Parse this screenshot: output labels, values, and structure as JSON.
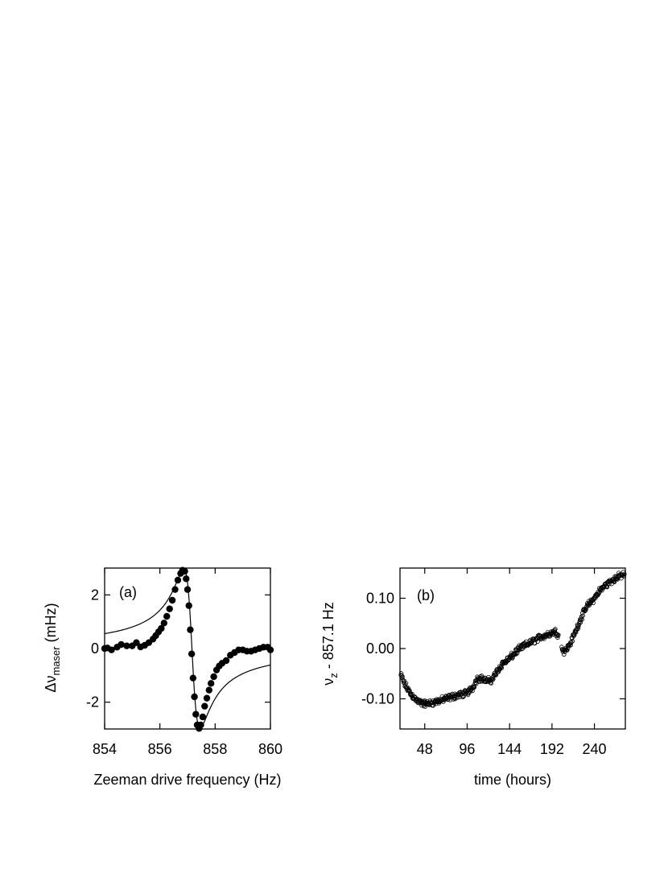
{
  "chart_data": [
    {
      "panel": "(a)",
      "type": "scatter",
      "xlabel": "Zeeman drive frequency (Hz)",
      "ylabel_main": "Δν",
      "ylabel_sub": "maser",
      "ylabel_unit": " (mHz)",
      "xlim": [
        854,
        860
      ],
      "ylim": [
        -3,
        3
      ],
      "xticks": [
        854,
        856,
        858,
        860
      ],
      "yticks": [
        -2,
        0,
        2
      ],
      "fit_curve": {
        "center": 857.16,
        "gamma": 0.3,
        "amplitude": 2.95
      },
      "points": [
        [
          853.9,
          0.0
        ],
        [
          854.1,
          0.02
        ],
        [
          854.25,
          -0.05
        ],
        [
          854.45,
          0.05
        ],
        [
          854.6,
          0.15
        ],
        [
          854.8,
          0.1
        ],
        [
          855.0,
          0.1
        ],
        [
          855.15,
          0.22
        ],
        [
          855.3,
          0.06
        ],
        [
          855.45,
          0.12
        ],
        [
          855.6,
          0.22
        ],
        [
          855.75,
          0.35
        ],
        [
          855.85,
          0.48
        ],
        [
          855.95,
          0.62
        ],
        [
          856.05,
          0.75
        ],
        [
          856.15,
          0.95
        ],
        [
          856.25,
          1.2
        ],
        [
          856.35,
          1.48
        ],
        [
          856.45,
          1.8
        ],
        [
          856.55,
          2.2
        ],
        [
          856.65,
          2.55
        ],
        [
          856.75,
          2.8
        ],
        [
          856.82,
          2.92
        ],
        [
          856.9,
          2.88
        ],
        [
          856.95,
          2.6
        ],
        [
          857.0,
          2.2
        ],
        [
          857.05,
          1.6
        ],
        [
          857.1,
          0.7
        ],
        [
          857.15,
          -0.2
        ],
        [
          857.2,
          -1.1
        ],
        [
          857.25,
          -1.8
        ],
        [
          857.3,
          -2.45
        ],
        [
          857.35,
          -2.85
        ],
        [
          857.42,
          -2.98
        ],
        [
          857.48,
          -2.85
        ],
        [
          857.55,
          -2.55
        ],
        [
          857.62,
          -2.15
        ],
        [
          857.7,
          -1.85
        ],
        [
          857.78,
          -1.55
        ],
        [
          857.85,
          -1.3
        ],
        [
          857.95,
          -1.05
        ],
        [
          858.05,
          -0.8
        ],
        [
          858.15,
          -0.65
        ],
        [
          858.25,
          -0.55
        ],
        [
          858.4,
          -0.45
        ],
        [
          858.55,
          -0.25
        ],
        [
          858.7,
          -0.15
        ],
        [
          858.85,
          -0.05
        ],
        [
          859.0,
          -0.05
        ],
        [
          859.15,
          -0.1
        ],
        [
          859.3,
          -0.1
        ],
        [
          859.45,
          -0.05
        ],
        [
          859.6,
          0.0
        ],
        [
          859.75,
          0.05
        ],
        [
          859.9,
          0.05
        ],
        [
          860.0,
          -0.05
        ]
      ]
    },
    {
      "panel": "(b)",
      "type": "scatter",
      "xlabel": "time (hours)",
      "ylabel_main": "ν",
      "ylabel_sub": "z",
      "ylabel_unit": " - 857.1 Hz",
      "xlim": [
        20,
        275
      ],
      "ylim": [
        -0.16,
        0.16
      ],
      "xticks": [
        48,
        96,
        144,
        192,
        240
      ],
      "yticks": [
        -0.1,
        0.0,
        0.1
      ],
      "ytick_labels": [
        "-0.10",
        "0.00",
        "0.10"
      ],
      "trend": [
        [
          20,
          -0.048
        ],
        [
          25,
          -0.07
        ],
        [
          32,
          -0.09
        ],
        [
          40,
          -0.105
        ],
        [
          48,
          -0.11
        ],
        [
          56,
          -0.108
        ],
        [
          64,
          -0.104
        ],
        [
          72,
          -0.1
        ],
        [
          80,
          -0.095
        ],
        [
          88,
          -0.092
        ],
        [
          96,
          -0.088
        ],
        [
          102,
          -0.078
        ],
        [
          108,
          -0.058
        ],
        [
          113,
          -0.06
        ],
        [
          118,
          -0.065
        ],
        [
          124,
          -0.062
        ],
        [
          130,
          -0.045
        ],
        [
          136,
          -0.03
        ],
        [
          144,
          -0.02
        ],
        [
          152,
          -0.005
        ],
        [
          160,
          0.005
        ],
        [
          168,
          0.012
        ],
        [
          176,
          0.02
        ],
        [
          184,
          0.026
        ],
        [
          190,
          0.03
        ],
        [
          196,
          0.034
        ],
        [
          199,
          0.028
        ],
        [
          203,
          0.0
        ],
        [
          206,
          -0.005
        ],
        [
          210,
          0.002
        ],
        [
          214,
          0.015
        ],
        [
          220,
          0.04
        ],
        [
          226,
          0.065
        ],
        [
          232,
          0.085
        ],
        [
          240,
          0.1
        ],
        [
          246,
          0.115
        ],
        [
          252,
          0.125
        ],
        [
          258,
          0.133
        ],
        [
          264,
          0.14
        ],
        [
          270,
          0.145
        ],
        [
          275,
          0.148
        ]
      ],
      "noise": 0.008,
      "n_points": 560
    }
  ]
}
